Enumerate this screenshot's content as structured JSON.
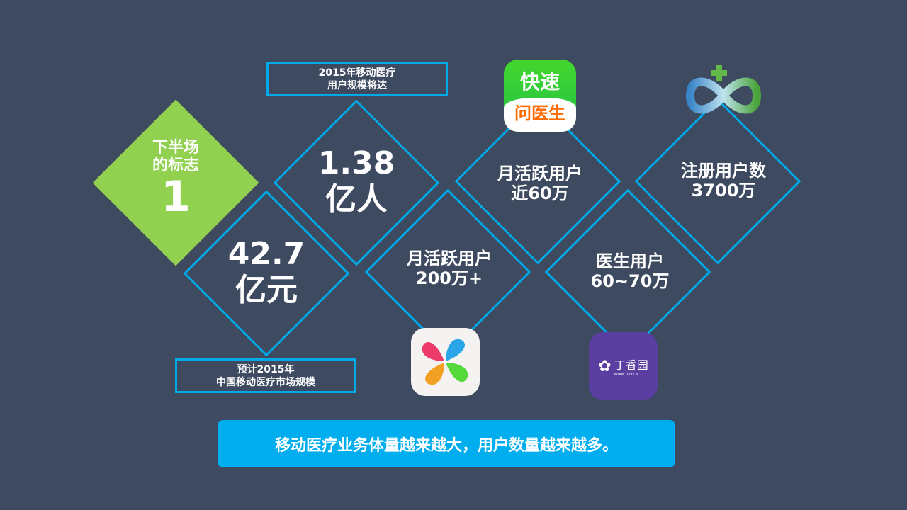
{
  "colors": {
    "background": "#3d4a60",
    "accent": "#00a9e8",
    "green": "#92d050",
    "banner": "#00aeef"
  },
  "marker": {
    "line1": "下半场",
    "line2": "的标志",
    "number": "1"
  },
  "users_2015": {
    "value": "1.38",
    "unit": "亿人",
    "caption_line1": "2015年移动医疗",
    "caption_line2": "用户规模将达"
  },
  "market_2015": {
    "value": "42.7",
    "unit": "亿元",
    "caption_line1": "预计2015年",
    "caption_line2": "中国移动医疗市场规模"
  },
  "app1": {
    "label": "月活跃用户",
    "value": "200万+",
    "icon": "clover-app-icon"
  },
  "app2": {
    "label": "月活跃用户",
    "value": "近60万",
    "icon": "kuaisu-wenyisheng-app-icon",
    "icon_text_top": "快速",
    "icon_text_bottom": "问医生"
  },
  "app3": {
    "label": "医生用户",
    "value": "60~70万",
    "icon": "dingxiangyuan-app-icon",
    "icon_text": "丁香园",
    "icon_subtext": "WWW.DXY.CN"
  },
  "app4": {
    "label": "注册用户数",
    "value": "3700万",
    "icon": "infinity-cross-logo"
  },
  "banner": "移动医疗业务体量越来越大，用户数量越来越多。"
}
